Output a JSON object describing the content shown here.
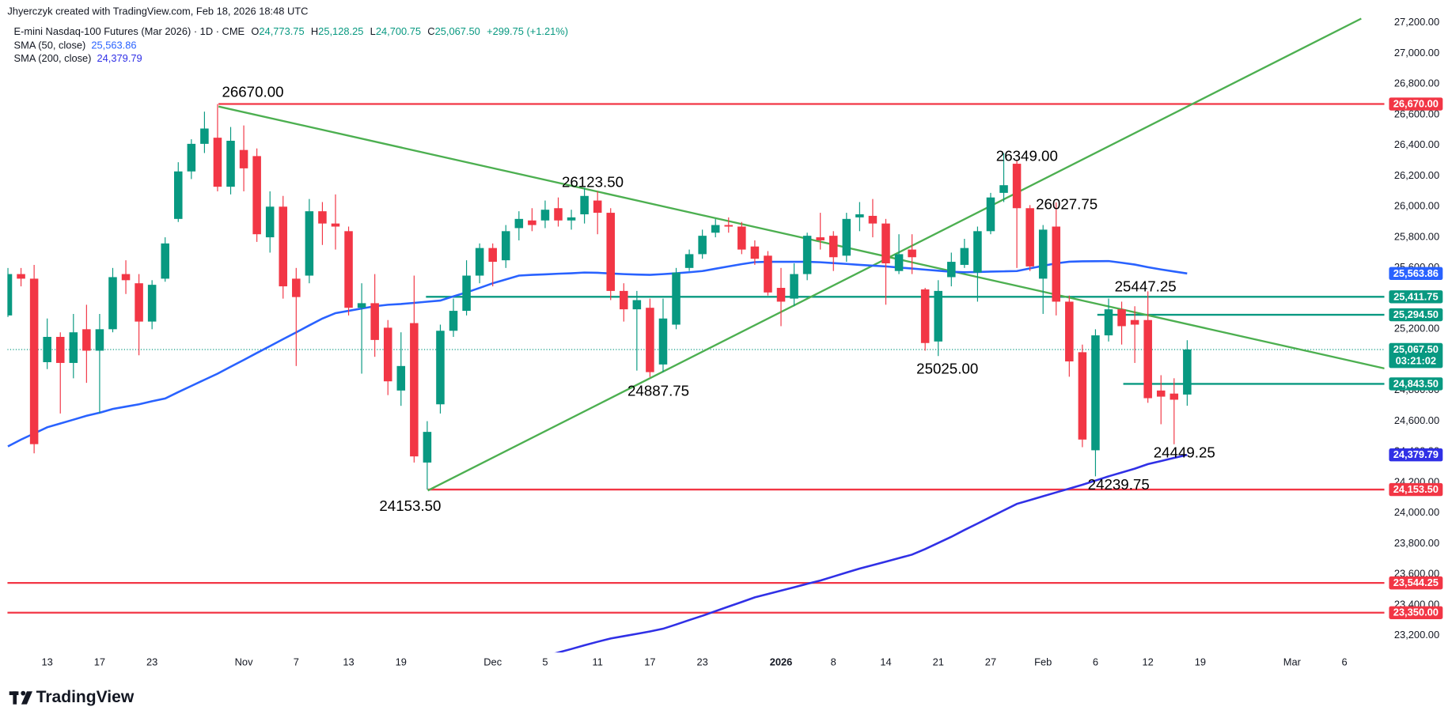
{
  "chart_data": {
    "type": "candlestick",
    "credit": "Jhyerczyk created with TradingView.com, Feb 18, 2026 18:48 UTC",
    "title": "E-mini Nasdaq-100 Futures (Mar 2026) · 1D · CME",
    "ohlc_legend": [
      {
        "key": "O",
        "text": "24,773.75"
      },
      {
        "key": "H",
        "text": "25,128.25"
      },
      {
        "key": "L",
        "text": "24,700.75"
      },
      {
        "key": "C",
        "text": "25,067.50"
      }
    ],
    "change": "+299.75 (+1.21%)",
    "brand": "TradingView",
    "up_color": "#089981",
    "down_color": "#f23645",
    "trend_color": "#4caf50",
    "grid": false,
    "ylim": [
      23090,
      27300
    ],
    "yticks": [
      {
        "value": 23200,
        "label": "23,200.00"
      },
      {
        "value": 23400,
        "label": "23,400.00"
      },
      {
        "value": 23600,
        "label": "23,600.00"
      },
      {
        "value": 23800,
        "label": "23,800.00"
      },
      {
        "value": 24000,
        "label": "24,000.00"
      },
      {
        "value": 24200,
        "label": "24,200.00"
      },
      {
        "value": 24400,
        "label": "24,400.00"
      },
      {
        "value": 24600,
        "label": "24,600.00"
      },
      {
        "value": 24800,
        "label": "24,800.00"
      },
      {
        "value": 25000,
        "label": "25,000.00"
      },
      {
        "value": 25200,
        "label": "25,200.00"
      },
      {
        "value": 25400,
        "label": "25,400.00"
      },
      {
        "value": 25600,
        "label": "25,600.00"
      },
      {
        "value": 25800,
        "label": "25,800.00"
      },
      {
        "value": 26000,
        "label": "26,000.00"
      },
      {
        "value": 26200,
        "label": "26,200.00"
      },
      {
        "value": 26400,
        "label": "26,400.00"
      },
      {
        "value": 26600,
        "label": "26,600.00"
      },
      {
        "value": 26800,
        "label": "26,800.00"
      },
      {
        "value": 27000,
        "label": "27,000.00"
      },
      {
        "value": 27200,
        "label": "27,200.00"
      }
    ],
    "categories": [
      null,
      null,
      null,
      "13",
      null,
      null,
      null,
      "17",
      null,
      null,
      null,
      "23",
      null,
      null,
      null,
      null,
      null,
      null,
      "Nov",
      null,
      null,
      null,
      "7",
      null,
      null,
      null,
      "13",
      null,
      null,
      null,
      "19",
      null,
      null,
      null,
      null,
      null,
      null,
      "Dec",
      null,
      null,
      null,
      "5",
      null,
      null,
      null,
      "11",
      null,
      null,
      null,
      "17",
      null,
      null,
      null,
      "23",
      null,
      null,
      null,
      null,
      null,
      "2026",
      null,
      null,
      null,
      "8",
      null,
      null,
      null,
      "14",
      null,
      null,
      null,
      "21",
      null,
      null,
      null,
      "27",
      null,
      null,
      null,
      "Feb",
      null,
      null,
      null,
      "6",
      null,
      null,
      null,
      "12",
      null,
      null,
      null,
      "19",
      null,
      null,
      null,
      null,
      null,
      null,
      "Mar",
      null,
      null,
      null,
      "6",
      null,
      null,
      null
    ],
    "open": [
      25290,
      25560,
      25530,
      24985,
      25150,
      24980,
      25200,
      25060,
      25200,
      25560,
      25500,
      25250,
      25530,
      25920,
      26230,
      26410,
      26450,
      26130,
      26370,
      26330,
      25800,
      26000,
      25530,
      25550,
      25970,
      25890,
      25840,
      25340,
      25370,
      25210,
      24800,
      25240,
      24330,
      24710,
      25190,
      25320,
      25550,
      25730,
      25650,
      25860,
      25910,
      25910,
      25990,
      25910,
      25950,
      26040,
      25960,
      25450,
      25330,
      25340,
      24970,
      25230,
      25600,
      25690,
      25830,
      25880,
      25870,
      25740,
      25680,
      25470,
      25400,
      25560,
      25800,
      25810,
      25680,
      25930,
      25940,
      25890,
      25580,
      25720,
      25460,
      25120,
      25540,
      25620,
      25570,
      25840,
      26090,
      26280,
      25990,
      25530,
      25870,
      25380,
      25050,
      24410,
      25160,
      25330,
      25260,
      25260,
      24800,
      24780,
      24773.75,
      null,
      null,
      null,
      null,
      null,
      null,
      null,
      null,
      null,
      null,
      null,
      null,
      null,
      null,
      null
    ],
    "high": [
      25600,
      25600,
      25620,
      25270,
      25180,
      25300,
      25360,
      25300,
      25600,
      25650,
      25560,
      25520,
      25800,
      26290,
      26440,
      26620,
      26670,
      26520,
      26530,
      26380,
      26100,
      26070,
      25600,
      26050,
      26030,
      26080,
      25870,
      25500,
      25560,
      25260,
      25180,
      25550,
      24600,
      25230,
      25400,
      25650,
      25760,
      25760,
      25880,
      25970,
      25990,
      26040,
      26060,
      25980,
      26123.5,
      26100,
      25990,
      25500,
      25450,
      25400,
      25400,
      25600,
      25720,
      25850,
      25920,
      25930,
      25900,
      25780,
      25710,
      25600,
      25630,
      25830,
      25960,
      25840,
      25960,
      26030,
      26050,
      25920,
      25820,
      25820,
      25470,
      25520,
      25700,
      25790,
      25870,
      26090,
      26349,
      26300,
      26010,
      25880,
      26027.75,
      25420,
      25100,
      25200,
      25400,
      25380,
      25350,
      25447.25,
      24900,
      24880,
      25128.25,
      null,
      null,
      null,
      null,
      null,
      null,
      null,
      null,
      null,
      null,
      null,
      null,
      null,
      null,
      null
    ],
    "low": [
      25280,
      25480,
      24390,
      24940,
      24650,
      24880,
      24850,
      24650,
      25180,
      25430,
      25030,
      25200,
      25510,
      25900,
      26180,
      26350,
      26100,
      26080,
      26100,
      25770,
      25700,
      25400,
      24960,
      25500,
      25750,
      25720,
      25290,
      24910,
      25020,
      24770,
      24700,
      24330,
      24153.5,
      24650,
      25150,
      25290,
      25500,
      25480,
      25600,
      25780,
      25840,
      25860,
      25870,
      25850,
      25890,
      25820,
      25390,
      25250,
      24930,
      24887.75,
      24920,
      25200,
      25580,
      25660,
      25800,
      25830,
      25690,
      25620,
      25420,
      25220,
      25350,
      25520,
      25720,
      25580,
      25640,
      25840,
      25800,
      25360,
      25560,
      25560,
      25060,
      25025,
      25480,
      25600,
      25380,
      25820,
      26030,
      25600,
      25580,
      25300,
      25290,
      24890,
      24430,
      24239.75,
      25120,
      25100,
      24980,
      24720,
      24580,
      24449.25,
      24700.75,
      null,
      null,
      null,
      null,
      null,
      null,
      null,
      null,
      null,
      null,
      null,
      null,
      null,
      null,
      null
    ],
    "close": [
      25560,
      25530,
      24450,
      25150,
      24980,
      25180,
      25060,
      25200,
      25540,
      25520,
      25250,
      25490,
      25760,
      26230,
      26410,
      26510,
      26130,
      26430,
      26250,
      25820,
      26000,
      25480,
      25410,
      25970,
      25890,
      25870,
      25340,
      25370,
      25130,
      24860,
      24960,
      24370,
      24530,
      25190,
      25320,
      25550,
      25730,
      25640,
      25840,
      25920,
      25880,
      25980,
      25910,
      25930,
      26070,
      25960,
      25450,
      25330,
      25390,
      24920,
      25270,
      25570,
      25690,
      25810,
      25880,
      25870,
      25720,
      25660,
      25440,
      25380,
      25560,
      25810,
      25780,
      25670,
      25920,
      25950,
      25890,
      25630,
      25690,
      25670,
      25110,
      25450,
      25640,
      25730,
      25840,
      26060,
      26140,
      25990,
      25610,
      25850,
      25380,
      24990,
      24480,
      25160,
      25330,
      25220,
      25230,
      24750,
      24760,
      24740,
      25067.5,
      null,
      null,
      null,
      null,
      null,
      null,
      null,
      null,
      null,
      null,
      null,
      null,
      null,
      null,
      null
    ],
    "indicators": [
      {
        "name": "SMA (50, close)",
        "value_label": "25,563.86",
        "color": "#2962ff",
        "values": [
          24435,
          24480,
          24520,
          24560,
          24585,
          24610,
          24635,
          24655,
          24680,
          24695,
          24710,
          24730,
          24748,
          24790,
          24830,
          24870,
          24910,
          24955,
          25000,
          25045,
          25090,
          25135,
          25180,
          25225,
          25270,
          25305,
          25320,
          25335,
          25350,
          25360,
          25365,
          25372,
          25380,
          25387,
          25415,
          25440,
          25470,
          25500,
          25525,
          25550,
          25555,
          25558,
          25562,
          25565,
          25570,
          25568,
          25564,
          25560,
          25557,
          25555,
          25560,
          25565,
          25572,
          25580,
          25595,
          25610,
          25625,
          25638,
          25640,
          25640,
          25640,
          25640,
          25637,
          25632,
          25626,
          25620,
          25615,
          25610,
          25603,
          25596,
          25589,
          25582,
          25575,
          25572,
          25574,
          25576,
          25578,
          25580,
          25597,
          25614,
          25630,
          25641,
          25643,
          25644,
          25645,
          25634,
          25622,
          25605,
          25590,
          25577,
          25563.86,
          null,
          null,
          null,
          null,
          null,
          null,
          null,
          null,
          null,
          null,
          null,
          null,
          null,
          null,
          null
        ]
      },
      {
        "name": "SMA (200, close)",
        "value_label": "24,379.79",
        "color": "#3030e6",
        "values": [
          null,
          null,
          null,
          null,
          null,
          null,
          null,
          null,
          null,
          null,
          null,
          null,
          null,
          null,
          null,
          null,
          null,
          null,
          null,
          null,
          null,
          null,
          null,
          null,
          null,
          null,
          null,
          null,
          null,
          null,
          null,
          null,
          null,
          null,
          null,
          null,
          null,
          null,
          null,
          null,
          null,
          23065,
          23090,
          23113,
          23137,
          23160,
          23182,
          23197,
          23212,
          23228,
          23245,
          23273,
          23302,
          23330,
          23360,
          23390,
          23420,
          23450,
          23472,
          23494,
          23516,
          23538,
          23560,
          23586,
          23612,
          23638,
          23660,
          23683,
          23706,
          23729,
          23765,
          23805,
          23845,
          23890,
          23932,
          23975,
          24018,
          24060,
          24085,
          24110,
          24135,
          24160,
          24185,
          24212,
          24240,
          24265,
          24290,
          24320,
          24340,
          24360,
          24379.79,
          null,
          null,
          null,
          null,
          null,
          null,
          null,
          null,
          null,
          null,
          null,
          null,
          null,
          null,
          null
        ]
      }
    ],
    "levels": [
      {
        "value": 26670,
        "label": "26,670.00",
        "color": "#f23645"
      },
      {
        "value": 25411.75,
        "label": "25,411.75",
        "color": "#089981"
      },
      {
        "value": 25294.5,
        "label": "25,294.50",
        "color": "#089981"
      },
      {
        "value": 24843.5,
        "label": "24,843.50",
        "color": "#089981"
      },
      {
        "value": 24153.5,
        "label": "24,153.50",
        "color": "#f23645"
      },
      {
        "value": 23544.25,
        "label": "23,544.25",
        "color": "#f23645"
      },
      {
        "value": 23350,
        "label": "23,350.00",
        "color": "#f23645"
      }
    ],
    "current_price": {
      "value": 25067.5,
      "label": "25,067.50",
      "countdown": "03:21:02",
      "color": "#089981"
    },
    "annotations": [
      {
        "value": 26670,
        "label": "26670.00"
      },
      {
        "value": 26123.5,
        "label": "26123.50"
      },
      {
        "value": 24887.75,
        "label": "24887.75"
      },
      {
        "value": 24153.5,
        "label": "24153.50"
      },
      {
        "value": 26349,
        "label": "26349.00"
      },
      {
        "value": 26027.75,
        "label": "26027.75"
      },
      {
        "value": 25025,
        "label": "25025.00"
      },
      {
        "value": 25447.25,
        "label": "25447.25"
      },
      {
        "value": 24449.25,
        "label": "24449.25"
      },
      {
        "value": 24239.75,
        "label": "24239.75"
      }
    ]
  }
}
